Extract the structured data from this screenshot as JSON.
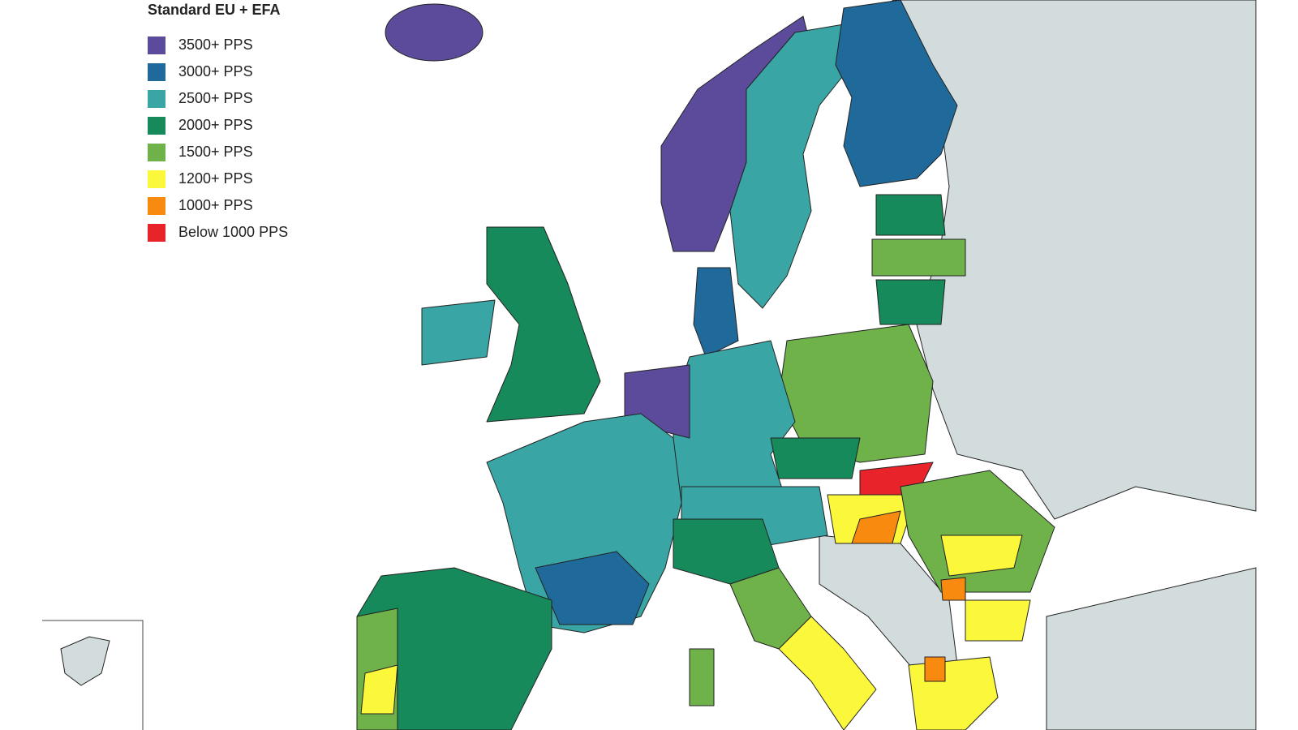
{
  "legend": {
    "title": "Standard EU + EFA",
    "items": [
      {
        "label": "3500+ PPS",
        "color": "#5c4a9b"
      },
      {
        "label": "3000+ PPS",
        "color": "#1f6a9a"
      },
      {
        "label": "2500+ PPS",
        "color": "#3aa5a5"
      },
      {
        "label": "2000+ PPS",
        "color": "#168a5a"
      },
      {
        "label": "1500+ PPS",
        "color": "#6fb24a"
      },
      {
        "label": "1200+ PPS",
        "color": "#fbf73a"
      },
      {
        "label": "1000+ PPS",
        "color": "#f98a10"
      },
      {
        "label": "Below 1000 PPS",
        "color": "#e8232a"
      }
    ]
  }
}
